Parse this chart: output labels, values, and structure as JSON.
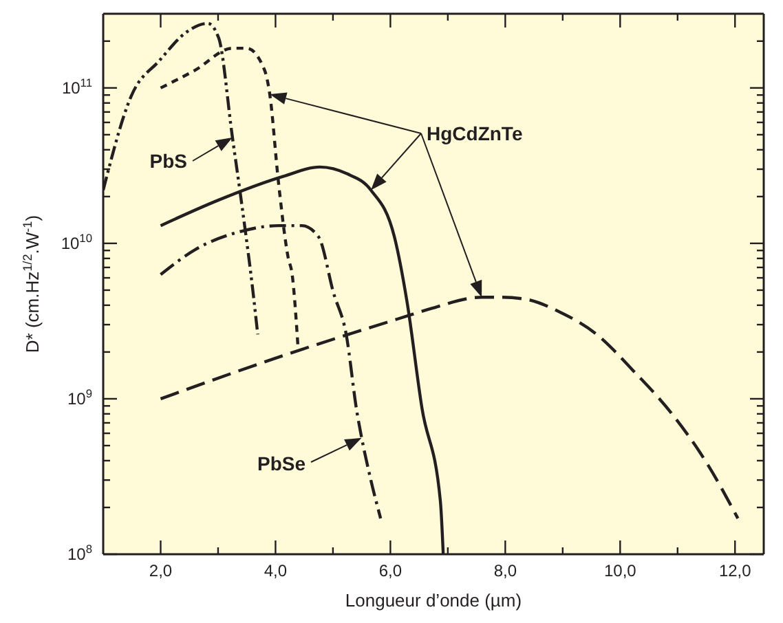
{
  "chart_data": {
    "type": "line",
    "xlabel": "Longueur d’onde (µm)",
    "ylabel": "D* (cm.Hz$^{1/2}$.W$^{-1}$)",
    "log": "y",
    "marker": "none",
    "annotations": [
      {
        "text": "PbS",
        "x": 3.25,
        "y": 48000000000.0
      },
      "HgCdZnTe",
      "PbSe"
    ],
    "xlim": [
      1,
      12.5
    ],
    "ylim": [
      100000000.0,
      300000000000.0
    ],
    "xticks": [
      {
        "value": 2,
        "label": "2,0"
      },
      {
        "value": 3,
        "label": null
      },
      {
        "value": 4,
        "label": "4,0"
      },
      {
        "value": 5,
        "label": null
      },
      {
        "value": 6,
        "label": "6,0"
      },
      {
        "value": 7,
        "label": null
      },
      {
        "value": 8,
        "label": "8,0"
      },
      {
        "value": 9,
        "label": null
      },
      {
        "value": 10,
        "label": "10,0"
      },
      {
        "value": 11,
        "label": null
      },
      {
        "value": 12,
        "label": "12,0"
      }
    ],
    "yticks": [
      {
        "value": 100000000.0,
        "label": "10$^{8}$"
      },
      {
        "value": 200000000.0,
        "label": null
      },
      {
        "value": 300000000.0,
        "label": null
      },
      {
        "value": 400000000.0,
        "label": null
      },
      {
        "value": 500000000.0,
        "label": null
      },
      {
        "value": 600000000.0,
        "label": null
      },
      {
        "value": 700000000.0,
        "label": null
      },
      {
        "value": 800000000.0,
        "label": null
      },
      {
        "value": 900000000.0,
        "label": null
      },
      {
        "value": 1000000000.0,
        "label": "10$^{9}$"
      },
      {
        "value": 2000000000.0,
        "label": null
      },
      {
        "value": 3000000000.0,
        "label": null
      },
      {
        "value": 4000000000.0,
        "label": null
      },
      {
        "value": 5000000000.0,
        "label": null
      },
      {
        "value": 6000000000.0,
        "label": null
      },
      {
        "value": 7000000000.0,
        "label": null
      },
      {
        "value": 8000000000.0,
        "label": null
      },
      {
        "value": 9000000000.0,
        "label": null
      },
      {
        "value": 10000000000.0,
        "label": "10$^{10}$"
      },
      {
        "value": 20000000000.0,
        "label": null
      },
      {
        "value": 30000000000.0,
        "label": null
      },
      {
        "value": 40000000000.0,
        "label": null
      },
      {
        "value": 50000000000.0,
        "label": null
      },
      {
        "value": 60000000000.0,
        "label": null
      },
      {
        "value": 70000000000.0,
        "label": null
      },
      {
        "value": 80000000000.0,
        "label": null
      },
      {
        "value": 90000000000.0,
        "label": null
      },
      {
        "value": 100000000000.0,
        "label": "10$^{11}$"
      },
      {
        "value": 200000000000.0,
        "label": null
      }
    ],
    "series": [
      {
        "color": "#231f20",
        "line_style": "dashdotdot",
        "x": [
          1.0,
          1.49,
          1.98,
          2.46,
          2.82,
          3.01,
          3.25,
          3.42,
          3.61,
          3.69
        ],
        "values": [
          22000000000.0,
          89000000000.0,
          150000000000.0,
          230000000000.0,
          260000000000.0,
          210000000000.0,
          48000000000.0,
          17000000000.0,
          4800000000.0,
          2600000000.0
        ]
      },
      {
        "color": "#231f20",
        "line_style": "dotted",
        "x": [
          2.0,
          2.6,
          3.25,
          3.5,
          3.81,
          3.9,
          4.05,
          4.22,
          4.29,
          4.39
        ],
        "values": [
          100000000000.0,
          130000000000.0,
          180000000000.0,
          180000000000.0,
          130000000000.0,
          91000000000.0,
          25000000000.0,
          8100000000.0,
          6300000000.0,
          2200000000.0
        ]
      },
      {
        "color": "#231f20",
        "line_style": "solid",
        "x": [
          2.0,
          3.01,
          4.14,
          4.77,
          5.25,
          5.66,
          6.07,
          6.29,
          6.55,
          6.87,
          6.92
        ],
        "values": [
          13000000000.0,
          19000000000.0,
          27000000000.0,
          31000000000.0,
          28000000000.0,
          22000000000.0,
          11000000000.0,
          4200000000.0,
          870000000.0,
          220000000.0,
          100000000.0
        ]
      },
      {
        "color": "#231f20",
        "line_style": "dashdot",
        "x": [
          2.0,
          2.6,
          3.42,
          4.05,
          4.46,
          4.75,
          5.01,
          5.23,
          5.42,
          5.5,
          5.66,
          5.83
        ],
        "values": [
          6300000000.0,
          9100000000.0,
          12000000000.0,
          13000000000.0,
          13000000000.0,
          11000000000.0,
          4800000000.0,
          2600000000.0,
          810000000.0,
          560000000.0,
          300000000.0,
          170000000.0
        ]
      },
      {
        "color": "#231f20",
        "line_style": "dashed",
        "x": [
          2.0,
          4.14,
          6.39,
          6.7,
          7.59,
          7.9,
          8.31,
          8.96,
          9.59,
          10.24,
          10.89,
          11.52,
          12.05
        ],
        "values": [
          1000000000.0,
          1900000000.0,
          3500000000.0,
          3800000000.0,
          4500000000.0,
          4500000000.0,
          4400000000.0,
          3600000000.0,
          2600000000.0,
          1500000000.0,
          810000000.0,
          380000000.0,
          170000000.0
        ]
      }
    ]
  }
}
